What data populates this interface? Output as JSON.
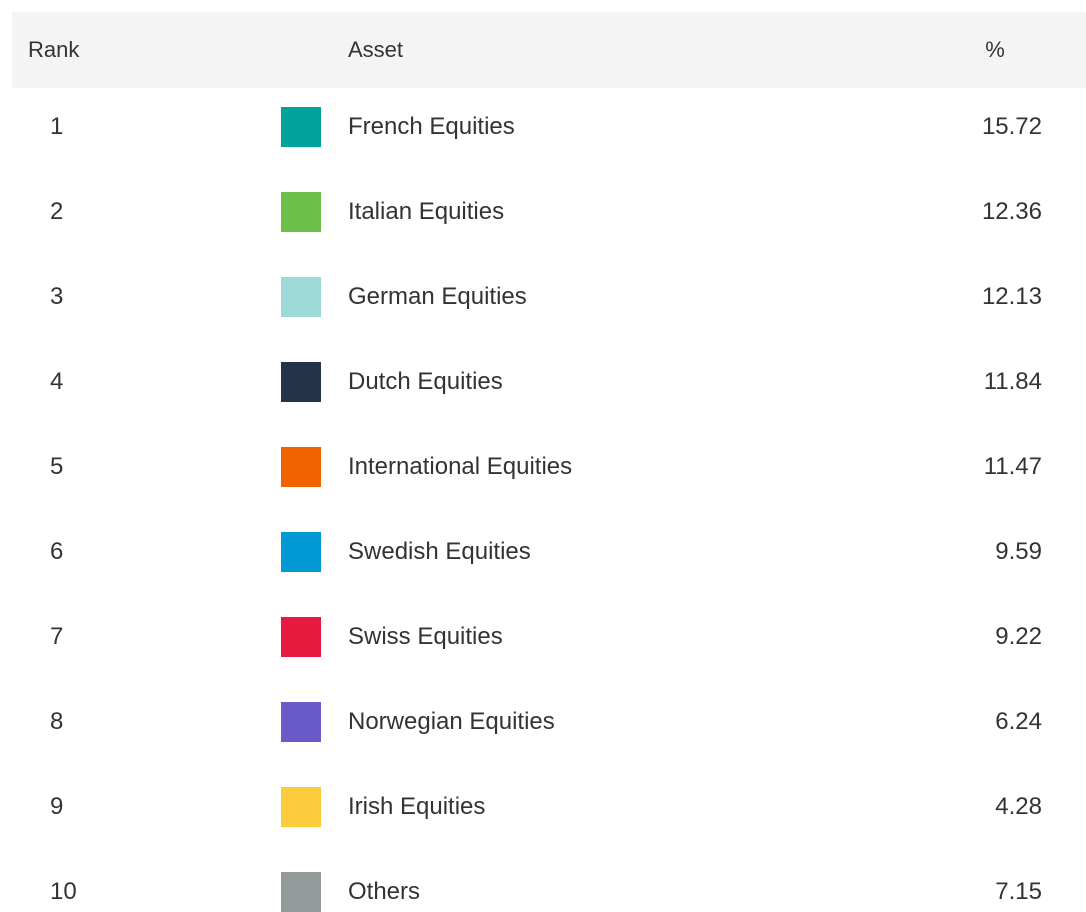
{
  "table": {
    "header": [
      "Rank",
      "Asset",
      "%"
    ],
    "rows": [
      [
        1,
        "French Equities",
        15.72
      ],
      [
        2,
        "Italian Equities",
        12.36
      ],
      [
        3,
        "German Equities",
        12.13
      ],
      [
        4,
        "Dutch Equities",
        11.84
      ],
      [
        5,
        "International Equities",
        11.47
      ],
      [
        6,
        "Swedish Equities",
        9.59
      ],
      [
        7,
        "Swiss Equities",
        9.22
      ],
      [
        8,
        "Norwegian Equities",
        6.24
      ],
      [
        9,
        "Irish Equities",
        4.28
      ],
      [
        10,
        "Others",
        7.15
      ]
    ],
    "colors": [
      "#00a39b",
      "#6cc04a",
      "#9edbd8",
      "#22334a",
      "#f06400",
      "#0099d5",
      "#e8193e",
      "#6a5ac8",
      "#fccb3d",
      "#929b9a"
    ]
  }
}
